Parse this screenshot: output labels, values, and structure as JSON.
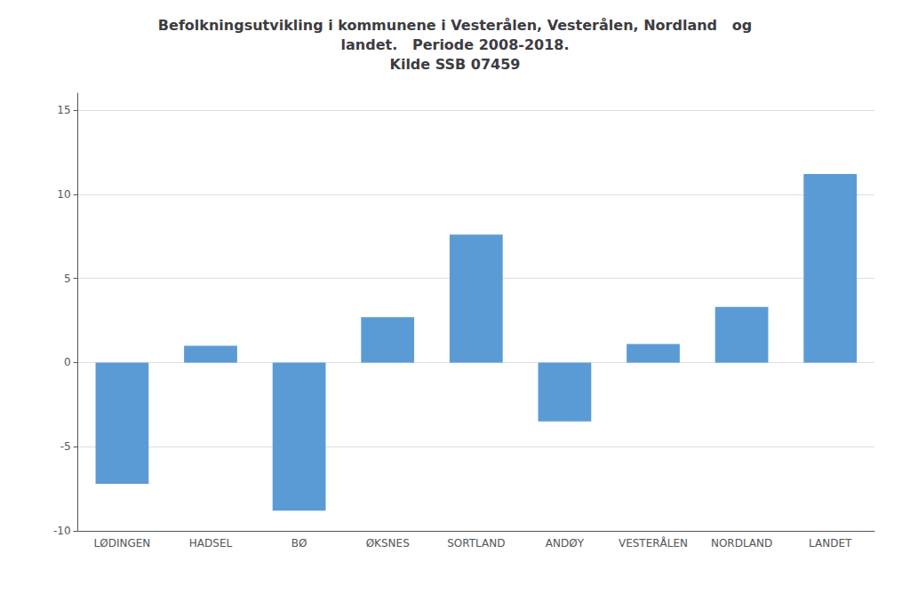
{
  "chart_data": {
    "type": "bar",
    "title": "Befolkningsutvikling i kommunene i Vesterålen, Vesterålen, Nordland   og\nlandet.   Periode 2008-2018.\nKilde SSB 07459",
    "categories": [
      "LØDINGEN",
      "HADSEL",
      "BØ",
      "ØKSNES",
      "SORTLAND",
      "ANDØY",
      "VESTERÅLEN",
      "NORDLAND",
      "LANDET"
    ],
    "values": [
      -7.2,
      1.0,
      -8.8,
      2.7,
      7.6,
      -3.5,
      1.1,
      3.3,
      11.2
    ],
    "color": "#5b9bd5",
    "ylim": [
      -10,
      16
    ],
    "yticks": [
      -10,
      -5,
      0,
      5,
      10,
      15
    ],
    "grid": true
  }
}
